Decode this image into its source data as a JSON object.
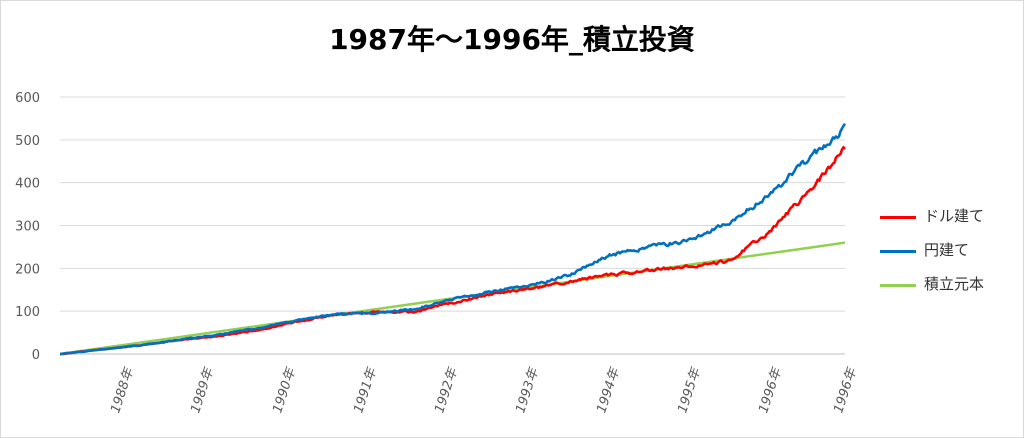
{
  "chart_data": {
    "type": "line",
    "title": "1987年～1996年_積立投資",
    "xlabel": "",
    "ylabel": "",
    "ylim": [
      0,
      600
    ],
    "y_ticks": [
      "0",
      "100",
      "200",
      "300",
      "400",
      "500",
      "600"
    ],
    "x_ticks": [
      "1988年",
      "1989年",
      "1990年",
      "1991年",
      "1992年",
      "1993年",
      "1994年",
      "1995年",
      "1996年",
      "1996年"
    ],
    "grid": true,
    "legend_position": "right",
    "x": [
      1987.0,
      1987.5,
      1988.0,
      1988.5,
      1989.0,
      1989.5,
      1990.0,
      1990.5,
      1991.0,
      1991.5,
      1992.0,
      1992.5,
      1993.0,
      1993.5,
      1994.0,
      1994.5,
      1995.0,
      1995.5,
      1996.0,
      1996.5,
      1997.0
    ],
    "series": [
      {
        "name": "ドル建て",
        "color": "#ff0000",
        "values": [
          0,
          10,
          20,
          32,
          42,
          55,
          75,
          92,
          98,
          98,
          120,
          140,
          152,
          170,
          185,
          195,
          205,
          215,
          280,
          370,
          480
        ]
      },
      {
        "name": "円建て",
        "color": "#0070c0",
        "values": [
          0,
          10,
          20,
          33,
          45,
          60,
          78,
          93,
          96,
          104,
          128,
          145,
          160,
          185,
          230,
          250,
          265,
          305,
          365,
          450,
          525
        ]
      },
      {
        "name": "積立元本",
        "color": "#92d050",
        "values": [
          0,
          13,
          26,
          39,
          52,
          65,
          78,
          91,
          104,
          117,
          130,
          143,
          156,
          169,
          182,
          195,
          208,
          221,
          234,
          247,
          260
        ]
      }
    ]
  }
}
